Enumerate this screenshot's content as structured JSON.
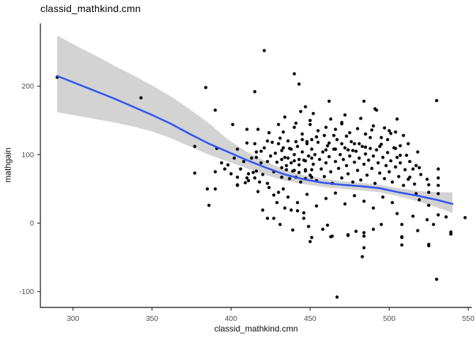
{
  "chart_data": {
    "type": "scatter",
    "title": "classid_mathkind.cmn",
    "xlabel": "classid_mathkind.cmn",
    "ylabel": "mathgain",
    "x_ticks": [
      300,
      350,
      400,
      450,
      500,
      550
    ],
    "y_ticks": [
      -100,
      0,
      100,
      200
    ],
    "xlim": [
      279.4,
      552.2
    ],
    "ylim": [
      -123.1,
      291.7
    ],
    "grid": false,
    "legend": false,
    "theme": "classic-white-no-grid",
    "colors": {
      "point": "#0a0a0a",
      "smooth_line": "#3355EE",
      "confidence_band": "#D3D3D3",
      "axis_line": "#333333",
      "tick_label": "#4D4D4D",
      "text": "#000000"
    },
    "smooth": {
      "x": [
        290,
        302,
        314,
        326,
        338,
        350,
        362,
        374,
        386,
        398,
        410,
        422,
        434,
        446,
        458,
        470,
        482,
        494,
        506,
        518,
        530,
        540
      ],
      "y": [
        215,
        204,
        193,
        182,
        170,
        158,
        145,
        130,
        116,
        104,
        92,
        81,
        71,
        64,
        59,
        56,
        54,
        51,
        45,
        40,
        34,
        28
      ],
      "upper": [
        274,
        259,
        245,
        230,
        216,
        201,
        185,
        166,
        146,
        122,
        104,
        90,
        78,
        70,
        65,
        61,
        59,
        56,
        51,
        47,
        45,
        45
      ],
      "lower": [
        162,
        157,
        152,
        147,
        141,
        134,
        124,
        112,
        100,
        90,
        80,
        70,
        62,
        57,
        53,
        50,
        48,
        45,
        39,
        32,
        23,
        15
      ]
    },
    "points": [
      [
        290,
        213
      ],
      [
        343,
        183
      ],
      [
        384,
        198
      ],
      [
        390,
        165
      ],
      [
        401,
        144
      ],
      [
        377,
        112
      ],
      [
        391,
        109
      ],
      [
        421,
        252
      ],
      [
        440,
        218
      ],
      [
        443,
        203
      ],
      [
        415,
        192
      ],
      [
        530,
        179
      ],
      [
        491,
        167
      ],
      [
        467,
        -108
      ],
      [
        530,
        -82
      ],
      [
        483,
        -49
      ],
      [
        450,
        -27
      ],
      [
        463,
        -20
      ],
      [
        474,
        -18
      ],
      [
        484,
        -19
      ],
      [
        508,
        -20
      ],
      [
        508,
        -32
      ],
      [
        525,
        -33
      ],
      [
        539,
        -16
      ],
      [
        548,
        8
      ],
      [
        377,
        73
      ],
      [
        390,
        75
      ],
      [
        396,
        79
      ],
      [
        400,
        72
      ],
      [
        404,
        67
      ],
      [
        410,
        66
      ],
      [
        411,
        62
      ],
      [
        385,
        50
      ],
      [
        390,
        50
      ],
      [
        404,
        56
      ],
      [
        386,
        26
      ],
      [
        414,
        74
      ],
      [
        394,
        88
      ],
      [
        398,
        85
      ],
      [
        402,
        95
      ],
      [
        444,
        163
      ],
      [
        434,
        155
      ],
      [
        441,
        146
      ],
      [
        450,
        144
      ],
      [
        410,
        137
      ],
      [
        417,
        137
      ],
      [
        424,
        132
      ],
      [
        430,
        144
      ],
      [
        410,
        117
      ],
      [
        415,
        116
      ],
      [
        404,
        108
      ],
      [
        419,
        105
      ],
      [
        430,
        116
      ],
      [
        433,
        110
      ],
      [
        437,
        109
      ],
      [
        441,
        119
      ],
      [
        445,
        122
      ],
      [
        448,
        119
      ],
      [
        451,
        122
      ],
      [
        416,
        96
      ],
      [
        423,
        90
      ],
      [
        416,
        76
      ],
      [
        420,
        71
      ],
      [
        432,
        93
      ],
      [
        436,
        95
      ],
      [
        440,
        91
      ],
      [
        443,
        93
      ],
      [
        447,
        91
      ],
      [
        451,
        95
      ],
      [
        432,
        81
      ],
      [
        435,
        78
      ],
      [
        439,
        76
      ],
      [
        443,
        74
      ],
      [
        447,
        76
      ],
      [
        451,
        78
      ],
      [
        432,
        67
      ],
      [
        437,
        65
      ],
      [
        441,
        67
      ],
      [
        447,
        65
      ],
      [
        451,
        67
      ],
      [
        415,
        66
      ],
      [
        492,
        165
      ],
      [
        482,
        153
      ],
      [
        470,
        147
      ],
      [
        466,
        137
      ],
      [
        489,
        136
      ],
      [
        497,
        139
      ],
      [
        473,
        127
      ],
      [
        459,
        128
      ],
      [
        454,
        126
      ],
      [
        462,
        117
      ],
      [
        470,
        116
      ],
      [
        478,
        116
      ],
      [
        481,
        116
      ],
      [
        460,
        107
      ],
      [
        466,
        108
      ],
      [
        474,
        107
      ],
      [
        477,
        106
      ],
      [
        485,
        111
      ],
      [
        488,
        109
      ],
      [
        494,
        112
      ],
      [
        499,
        122
      ],
      [
        501,
        131
      ],
      [
        462,
        178
      ],
      [
        484,
        178
      ],
      [
        505,
        152
      ],
      [
        504,
        133
      ],
      [
        507,
        113
      ],
      [
        504,
        109
      ],
      [
        507,
        99
      ],
      [
        518,
        104
      ],
      [
        517,
        84
      ],
      [
        519,
        81
      ],
      [
        515,
        79
      ],
      [
        531,
        79
      ],
      [
        531,
        66
      ],
      [
        520,
        71
      ],
      [
        524,
        64
      ],
      [
        513,
        67
      ],
      [
        516,
        57
      ],
      [
        525,
        56
      ],
      [
        531,
        55
      ],
      [
        517,
        43
      ],
      [
        519,
        34
      ],
      [
        525,
        45
      ],
      [
        531,
        43
      ],
      [
        525,
        26
      ],
      [
        505,
        14
      ],
      [
        515,
        10
      ],
      [
        531,
        12
      ],
      [
        536,
        9
      ],
      [
        524,
        5
      ],
      [
        528,
        -2
      ],
      [
        508,
        -2
      ],
      [
        508,
        -21
      ],
      [
        518,
        -11
      ],
      [
        539,
        -13
      ],
      [
        525,
        -31
      ],
      [
        404,
        55
      ],
      [
        409,
        59
      ],
      [
        417,
        46
      ],
      [
        423,
        58
      ],
      [
        427,
        41
      ],
      [
        433,
        50
      ],
      [
        429,
        30
      ],
      [
        434,
        22
      ],
      [
        438,
        19
      ],
      [
        420,
        19
      ],
      [
        423,
        7
      ],
      [
        427,
        7
      ],
      [
        431,
        -2
      ],
      [
        439,
        -10
      ],
      [
        446,
        7
      ],
      [
        449,
        -5
      ],
      [
        451,
        -21
      ],
      [
        446,
        15
      ],
      [
        442,
        18
      ],
      [
        461,
        -3
      ],
      [
        458,
        -9
      ],
      [
        464,
        -19
      ],
      [
        474,
        -17
      ],
      [
        479,
        -12
      ],
      [
        484,
        -14
      ],
      [
        490,
        -9
      ],
      [
        495,
        -2
      ],
      [
        484,
        -36
      ],
      [
        426,
        118
      ],
      [
        428,
        102
      ],
      [
        429,
        89
      ],
      [
        431,
        124
      ],
      [
        432,
        106
      ],
      [
        434,
        96
      ],
      [
        435,
        84
      ],
      [
        436,
        120
      ],
      [
        438,
        108
      ],
      [
        438,
        88
      ],
      [
        440,
        77
      ],
      [
        440,
        100
      ],
      [
        442,
        112
      ],
      [
        443,
        85
      ],
      [
        444,
        60
      ],
      [
        445,
        104
      ],
      [
        446,
        92
      ],
      [
        447,
        78
      ],
      [
        448,
        116
      ],
      [
        449,
        98
      ],
      [
        450,
        70
      ],
      [
        451,
        108
      ],
      [
        452,
        86
      ],
      [
        453,
        100
      ],
      [
        454,
        62
      ],
      [
        455,
        118
      ],
      [
        456,
        93
      ],
      [
        457,
        79
      ],
      [
        458,
        104
      ],
      [
        459,
        68
      ],
      [
        460,
        88
      ],
      [
        461,
        113
      ],
      [
        462,
        97
      ],
      [
        463,
        75
      ],
      [
        464,
        58
      ],
      [
        465,
        108
      ],
      [
        466,
        90
      ],
      [
        467,
        122
      ],
      [
        468,
        80
      ],
      [
        469,
        100
      ],
      [
        470,
        66
      ],
      [
        471,
        93
      ],
      [
        472,
        110
      ],
      [
        473,
        84
      ],
      [
        474,
        72
      ],
      [
        475,
        98
      ],
      [
        476,
        119
      ],
      [
        477,
        60
      ],
      [
        478,
        89
      ],
      [
        479,
        105
      ],
      [
        480,
        77
      ],
      [
        481,
        95
      ],
      [
        482,
        63
      ],
      [
        483,
        112
      ],
      [
        484,
        86
      ],
      [
        485,
        101
      ],
      [
        486,
        70
      ],
      [
        487,
        92
      ],
      [
        488,
        125
      ],
      [
        489,
        80
      ],
      [
        490,
        98
      ],
      [
        491,
        58
      ],
      [
        492,
        107
      ],
      [
        493,
        88
      ],
      [
        494,
        73
      ],
      [
        495,
        115
      ],
      [
        496,
        96
      ],
      [
        497,
        65
      ],
      [
        498,
        84
      ],
      [
        499,
        103
      ],
      [
        500,
        75
      ],
      [
        501,
        91
      ],
      [
        502,
        60
      ],
      [
        503,
        110
      ],
      [
        504,
        82
      ],
      [
        505,
        96
      ],
      [
        506,
        68
      ],
      [
        507,
        88
      ],
      [
        509,
        55
      ],
      [
        510,
        78
      ],
      [
        511,
        99
      ],
      [
        512,
        64
      ],
      [
        513,
        90
      ],
      [
        430,
        45
      ],
      [
        436,
        38
      ],
      [
        442,
        30
      ],
      [
        448,
        42
      ],
      [
        454,
        25
      ],
      [
        460,
        36
      ],
      [
        466,
        44
      ],
      [
        472,
        28
      ],
      [
        478,
        40
      ],
      [
        484,
        32
      ],
      [
        490,
        22
      ],
      [
        496,
        38
      ],
      [
        502,
        30
      ],
      [
        445,
        130
      ],
      [
        455,
        135
      ],
      [
        465,
        128
      ],
      [
        475,
        132
      ],
      [
        485,
        130
      ],
      [
        495,
        125
      ],
      [
        460,
        140
      ],
      [
        470,
        145
      ],
      [
        480,
        138
      ],
      [
        450,
        150
      ],
      [
        440,
        140
      ],
      [
        490,
        142
      ],
      [
        500,
        135
      ],
      [
        433,
        133
      ],
      [
        423,
        120
      ],
      [
        425,
        98
      ],
      [
        427,
        75
      ],
      [
        419,
        88
      ],
      [
        421,
        110
      ],
      [
        413,
        95
      ],
      [
        416,
        104
      ],
      [
        408,
        90
      ],
      [
        406,
        79
      ],
      [
        411,
        72
      ],
      [
        418,
        60
      ],
      [
        424,
        52
      ],
      [
        452,
        160
      ],
      [
        472,
        158
      ],
      [
        463,
        152
      ],
      [
        447,
        170
      ],
      [
        509,
        128
      ],
      [
        512,
        116
      ]
    ]
  }
}
